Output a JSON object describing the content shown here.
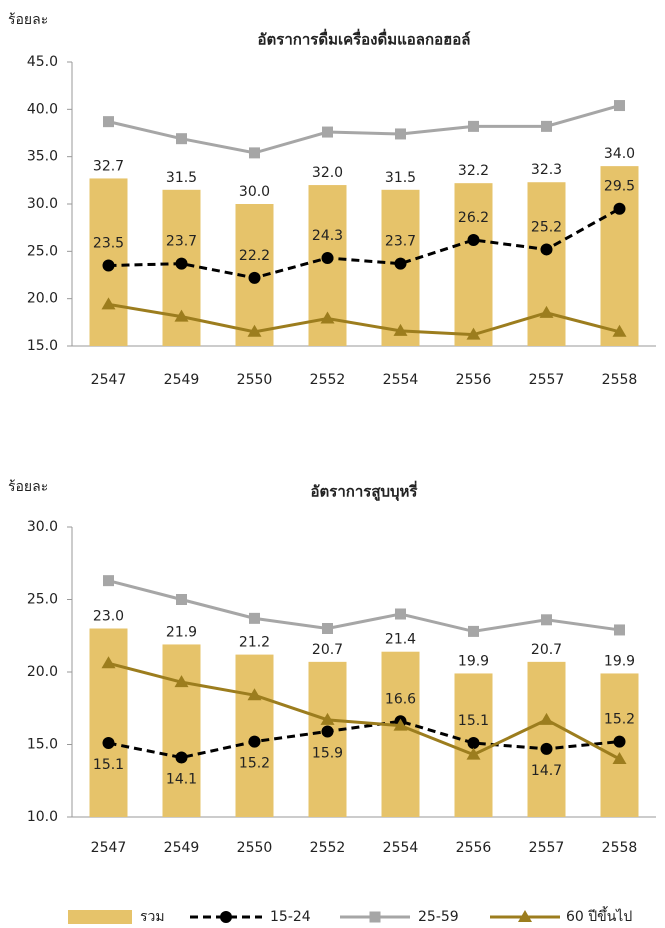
{
  "chart_data": [
    {
      "type": "bar_line",
      "title": "อัตราการดื่มเครื่องดื่มแอลกอฮอล์",
      "ylabel": "ร้อยละ",
      "categories": [
        "2547",
        "2549",
        "2550",
        "2552",
        "2554",
        "2556",
        "2557",
        "2558"
      ],
      "ylim": [
        15,
        45
      ],
      "yticks": [
        {
          "value": 15,
          "label": "15.0"
        },
        {
          "value": 20,
          "label": "20.0"
        },
        {
          "value": 25,
          "label": "25.0"
        },
        {
          "value": 30,
          "label": "30.0"
        },
        {
          "value": 35,
          "label": "35.0"
        },
        {
          "value": 40,
          "label": "40.0"
        },
        {
          "value": 45,
          "label": "45.0"
        }
      ],
      "series": [
        {
          "name": "รวม",
          "type": "bar",
          "color": "#e6c36a",
          "values": [
            32.7,
            31.5,
            30.0,
            32.0,
            31.5,
            32.2,
            32.3,
            34.0
          ],
          "value_labels": [
            "32.7",
            "31.5",
            "30.0",
            "32.0",
            "31.5",
            "32.2",
            "32.3",
            "34.0"
          ]
        },
        {
          "name": "15-24",
          "type": "line",
          "color": "#000000",
          "dashed": true,
          "marker": "circle",
          "values": [
            23.5,
            23.7,
            22.2,
            24.3,
            23.7,
            26.2,
            25.2,
            29.5
          ],
          "value_labels": [
            "23.5",
            "23.7",
            "22.2",
            "24.3",
            "23.7",
            "26.2",
            "25.2",
            "29.5"
          ]
        },
        {
          "name": "25-59",
          "type": "line",
          "color": "#a6a6a6",
          "marker": "square",
          "values": [
            38.7,
            36.9,
            35.4,
            37.6,
            37.4,
            38.2,
            38.2,
            40.4
          ]
        },
        {
          "name": "60 ปีขึ้นไป",
          "type": "line",
          "color": "#9c7d1e",
          "marker": "triangle",
          "values": [
            19.4,
            18.1,
            16.5,
            17.9,
            16.6,
            16.2,
            18.5,
            16.5
          ]
        }
      ]
    },
    {
      "type": "bar_line",
      "title": "อัตราการสูบบุหรี่",
      "ylabel": "ร้อยละ",
      "categories": [
        "2547",
        "2549",
        "2550",
        "2552",
        "2554",
        "2556",
        "2557",
        "2558"
      ],
      "ylim": [
        10,
        30
      ],
      "yticks": [
        {
          "value": 10,
          "label": "10.0"
        },
        {
          "value": 15,
          "label": "15.0"
        },
        {
          "value": 20,
          "label": "20.0"
        },
        {
          "value": 25,
          "label": "25.0"
        },
        {
          "value": 30,
          "label": "30.0"
        }
      ],
      "series": [
        {
          "name": "รวม",
          "type": "bar",
          "color": "#e6c36a",
          "values": [
            23.0,
            21.9,
            21.2,
            20.7,
            21.4,
            19.9,
            20.7,
            19.9
          ],
          "value_labels": [
            "23.0",
            "21.9",
            "21.2",
            "20.7",
            "21.4",
            "19.9",
            "20.7",
            "19.9"
          ]
        },
        {
          "name": "15-24",
          "type": "line",
          "color": "#000000",
          "dashed": true,
          "marker": "circle",
          "values": [
            15.1,
            14.1,
            15.2,
            15.9,
            16.6,
            15.1,
            14.7,
            15.2
          ],
          "value_labels": [
            "15.1",
            "14.1",
            "15.2",
            "15.9",
            "16.6",
            "15.1",
            "14.7",
            "15.2"
          ]
        },
        {
          "name": "25-59",
          "type": "line",
          "color": "#a6a6a6",
          "marker": "square",
          "values": [
            26.3,
            25.0,
            23.7,
            23.0,
            24.0,
            22.8,
            23.6,
            22.9
          ]
        },
        {
          "name": "60 ปีขึ้นไป",
          "type": "line",
          "color": "#9c7d1e",
          "marker": "triangle",
          "values": [
            20.6,
            19.3,
            18.4,
            16.7,
            16.3,
            14.3,
            16.7,
            14.0
          ]
        }
      ]
    }
  ]
}
